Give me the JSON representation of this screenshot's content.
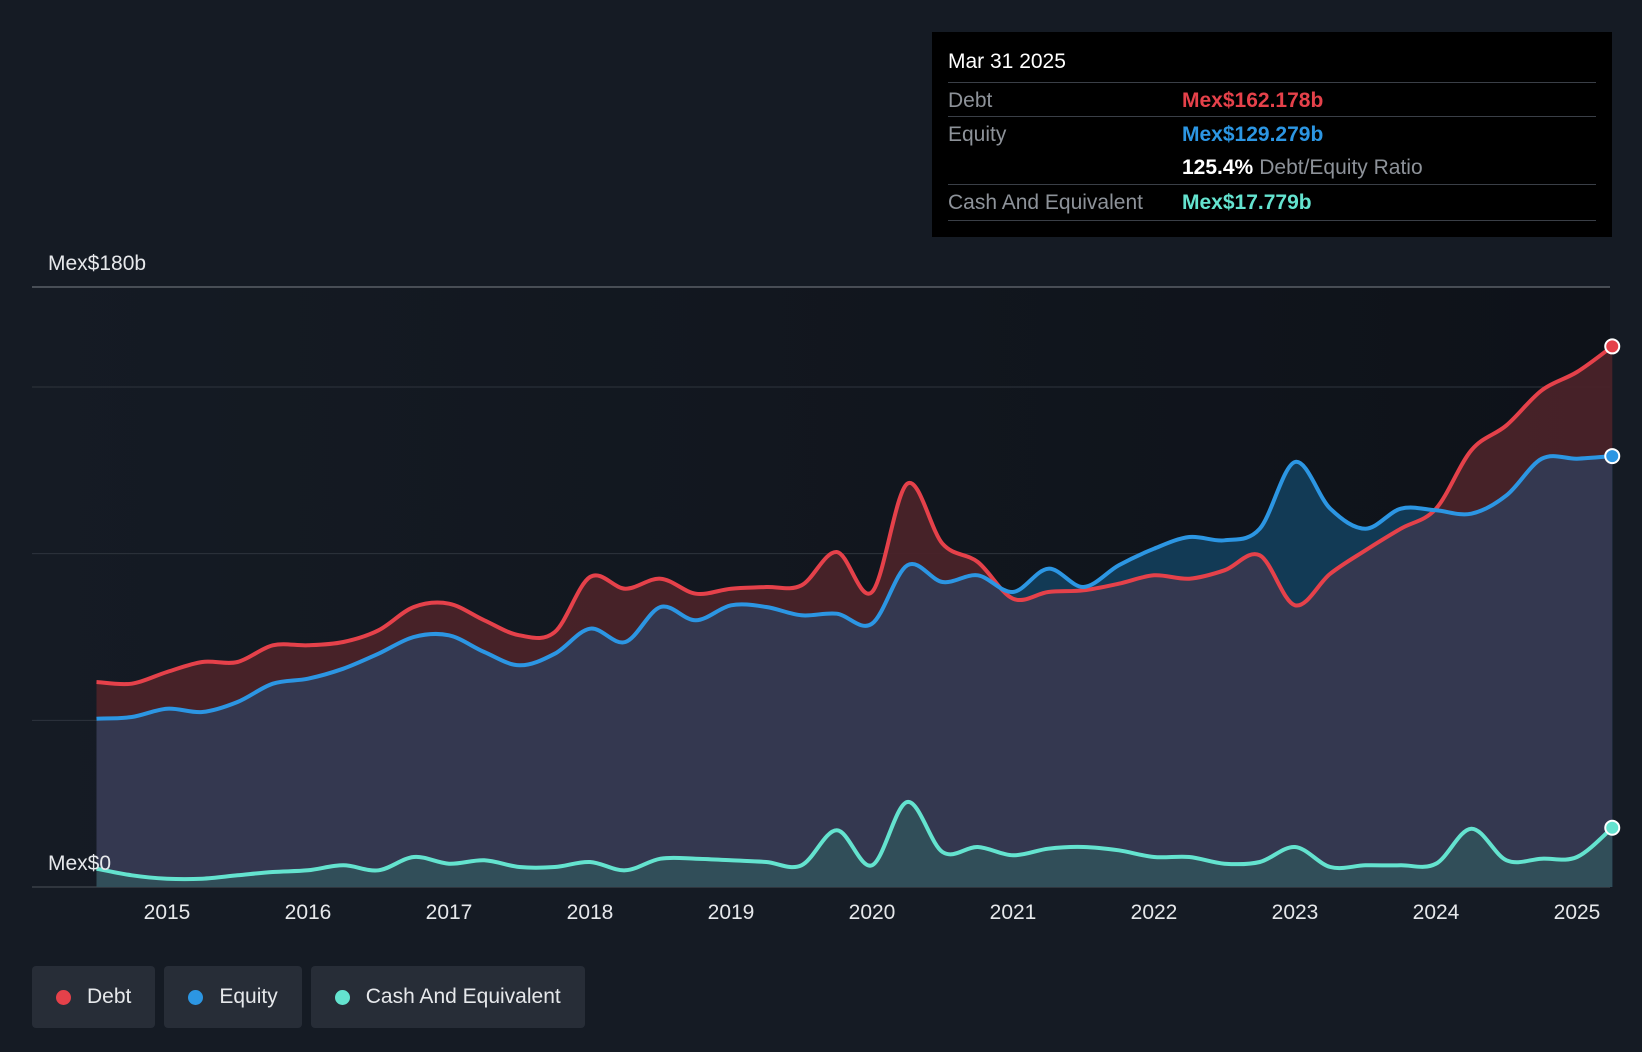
{
  "chart_data": {
    "type": "area",
    "title": "",
    "xlabel": "",
    "ylabel": "",
    "ylim": [
      0,
      180
    ],
    "y_top_label": "Mex$180b",
    "y_bottom_label": "Mex$0",
    "x_ticks": [
      "2015",
      "2016",
      "2017",
      "2018",
      "2019",
      "2020",
      "2021",
      "2022",
      "2023",
      "2024",
      "2025"
    ],
    "series": [
      {
        "name": "Debt",
        "color": "#e5414a",
        "points": [
          [
            2014.5,
            61.5
          ],
          [
            2014.75,
            61.0
          ],
          [
            2015.0,
            64.5
          ],
          [
            2015.25,
            67.5
          ],
          [
            2015.5,
            67.5
          ],
          [
            2015.75,
            72.5
          ],
          [
            2016.0,
            72.5
          ],
          [
            2016.25,
            73.5
          ],
          [
            2016.5,
            77.0
          ],
          [
            2016.75,
            84.0
          ],
          [
            2017.0,
            85.0
          ],
          [
            2017.25,
            80.0
          ],
          [
            2017.5,
            75.5
          ],
          [
            2017.75,
            76.5
          ],
          [
            2018.0,
            93.0
          ],
          [
            2018.25,
            89.5
          ],
          [
            2018.5,
            92.5
          ],
          [
            2018.75,
            88.0
          ],
          [
            2019.0,
            89.5
          ],
          [
            2019.25,
            90.0
          ],
          [
            2019.5,
            90.5
          ],
          [
            2019.75,
            100.5
          ],
          [
            2020.0,
            88.5
          ],
          [
            2020.25,
            121.0
          ],
          [
            2020.5,
            103.0
          ],
          [
            2020.75,
            97.5
          ],
          [
            2021.0,
            86.5
          ],
          [
            2021.25,
            88.5
          ],
          [
            2021.5,
            89.0
          ],
          [
            2021.75,
            91.0
          ],
          [
            2022.0,
            93.5
          ],
          [
            2022.25,
            92.5
          ],
          [
            2022.5,
            95.0
          ],
          [
            2022.75,
            99.5
          ],
          [
            2023.0,
            84.5
          ],
          [
            2023.25,
            94.0
          ],
          [
            2023.5,
            101.0
          ],
          [
            2023.75,
            107.5
          ],
          [
            2024.0,
            113.5
          ],
          [
            2024.25,
            131.0
          ],
          [
            2024.5,
            138.5
          ],
          [
            2024.75,
            149.0
          ],
          [
            2025.0,
            154.5
          ],
          [
            2025.25,
            162.178
          ]
        ]
      },
      {
        "name": "Equity",
        "color": "#2c96e3",
        "points": [
          [
            2014.5,
            50.5
          ],
          [
            2014.75,
            51.0
          ],
          [
            2015.0,
            53.5
          ],
          [
            2015.25,
            52.5
          ],
          [
            2015.5,
            55.5
          ],
          [
            2015.75,
            61.0
          ],
          [
            2016.0,
            62.5
          ],
          [
            2016.25,
            65.5
          ],
          [
            2016.5,
            70.0
          ],
          [
            2016.75,
            75.0
          ],
          [
            2017.0,
            75.5
          ],
          [
            2017.25,
            70.5
          ],
          [
            2017.5,
            66.5
          ],
          [
            2017.75,
            70.0
          ],
          [
            2018.0,
            77.5
          ],
          [
            2018.25,
            73.5
          ],
          [
            2018.5,
            84.0
          ],
          [
            2018.75,
            80.0
          ],
          [
            2019.0,
            84.5
          ],
          [
            2019.25,
            84.0
          ],
          [
            2019.5,
            81.5
          ],
          [
            2019.75,
            82.0
          ],
          [
            2020.0,
            79.0
          ],
          [
            2020.25,
            96.5
          ],
          [
            2020.5,
            91.5
          ],
          [
            2020.75,
            93.5
          ],
          [
            2021.0,
            88.5
          ],
          [
            2021.25,
            95.5
          ],
          [
            2021.5,
            90.0
          ],
          [
            2021.75,
            96.5
          ],
          [
            2022.0,
            101.5
          ],
          [
            2022.25,
            105.0
          ],
          [
            2022.5,
            104.0
          ],
          [
            2022.75,
            107.5
          ],
          [
            2023.0,
            127.5
          ],
          [
            2023.25,
            113.5
          ],
          [
            2023.5,
            107.5
          ],
          [
            2023.75,
            113.5
          ],
          [
            2024.0,
            113.0
          ],
          [
            2024.25,
            112.0
          ],
          [
            2024.5,
            117.5
          ],
          [
            2024.75,
            128.5
          ],
          [
            2025.0,
            128.5
          ],
          [
            2025.25,
            129.279
          ]
        ]
      },
      {
        "name": "Cash And Equivalent",
        "color": "#64e3cf",
        "points": [
          [
            2014.5,
            5.5
          ],
          [
            2014.75,
            3.5
          ],
          [
            2015.0,
            2.5
          ],
          [
            2015.25,
            2.5
          ],
          [
            2015.5,
            3.5
          ],
          [
            2015.75,
            4.5
          ],
          [
            2016.0,
            5.0
          ],
          [
            2016.25,
            6.5
          ],
          [
            2016.5,
            5.0
          ],
          [
            2016.75,
            9.0
          ],
          [
            2017.0,
            7.0
          ],
          [
            2017.25,
            8.0
          ],
          [
            2017.5,
            6.0
          ],
          [
            2017.75,
            6.0
          ],
          [
            2018.0,
            7.5
          ],
          [
            2018.25,
            5.0
          ],
          [
            2018.5,
            8.5
          ],
          [
            2018.75,
            8.5
          ],
          [
            2019.0,
            8.0
          ],
          [
            2019.25,
            7.5
          ],
          [
            2019.5,
            6.5
          ],
          [
            2019.75,
            17.0
          ],
          [
            2020.0,
            6.5
          ],
          [
            2020.25,
            25.5
          ],
          [
            2020.5,
            10.5
          ],
          [
            2020.75,
            12.0
          ],
          [
            2021.0,
            9.5
          ],
          [
            2021.25,
            11.5
          ],
          [
            2021.5,
            12.0
          ],
          [
            2021.75,
            11.0
          ],
          [
            2022.0,
            9.0
          ],
          [
            2022.25,
            9.0
          ],
          [
            2022.5,
            7.0
          ],
          [
            2022.75,
            7.5
          ],
          [
            2023.0,
            12.0
          ],
          [
            2023.25,
            6.0
          ],
          [
            2023.5,
            6.5
          ],
          [
            2023.75,
            6.5
          ],
          [
            2024.0,
            7.0
          ],
          [
            2024.25,
            17.5
          ],
          [
            2024.5,
            8.0
          ],
          [
            2024.75,
            8.5
          ],
          [
            2025.0,
            9.0
          ],
          [
            2025.25,
            17.779
          ]
        ]
      }
    ],
    "tooltip": {
      "date": "Mar 31 2025",
      "debt_label": "Debt",
      "debt_value": "Mex$162.178b",
      "equity_label": "Equity",
      "equity_value": "Mex$129.279b",
      "ratio_value": "125.4%",
      "ratio_label": "Debt/Equity Ratio",
      "cash_label": "Cash And Equivalent",
      "cash_value": "Mex$17.779b"
    },
    "legend": [
      "Debt",
      "Equity",
      "Cash And Equivalent"
    ]
  },
  "colors": {
    "background": "#151b24",
    "debt": "#e5414a",
    "equity": "#2c96e3",
    "cash": "#64e3cf",
    "grid": "#3a3f47"
  }
}
